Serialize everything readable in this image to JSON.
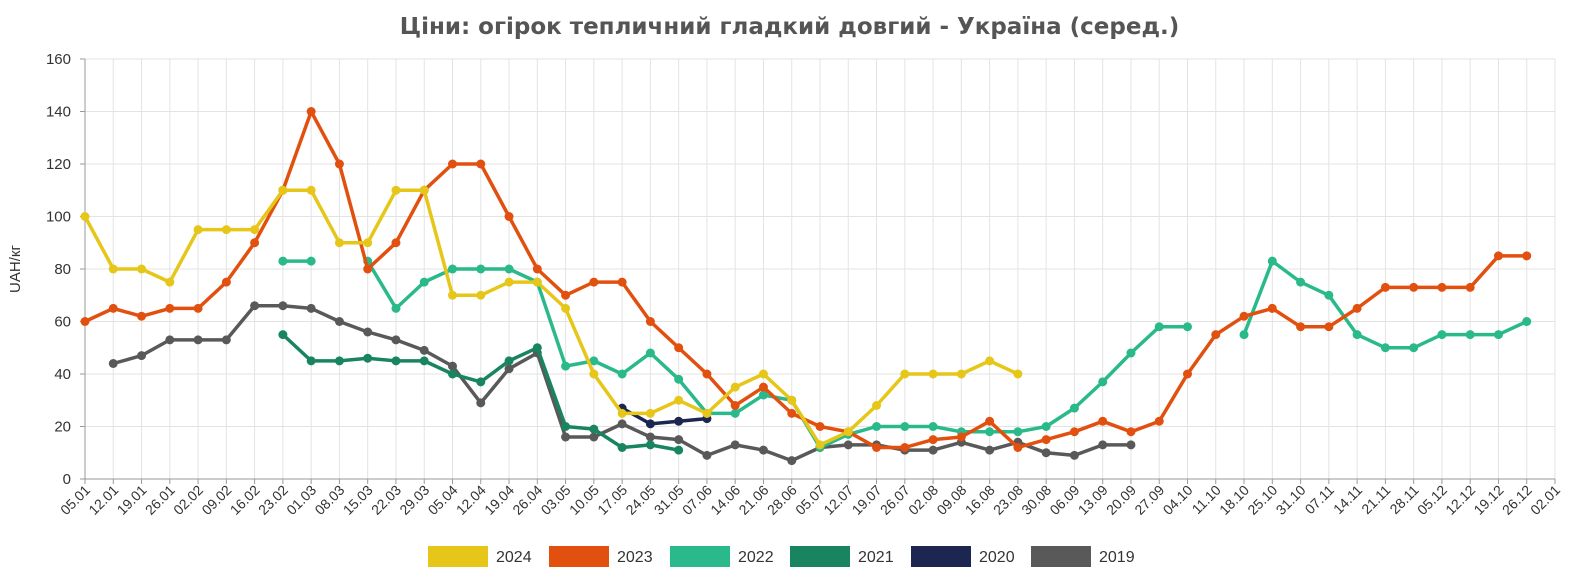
{
  "chart_data": {
    "type": "line",
    "title": "Ціни: огірок тепличний гладкий довгий - Україна (серед.)",
    "ylabel": "UAH/кг",
    "xlabel": "",
    "ylim": [
      0,
      160
    ],
    "yticks": [
      0,
      20,
      40,
      60,
      80,
      100,
      120,
      140,
      160
    ],
    "grid": true,
    "legend_position": "bottom",
    "categories": [
      "05.01",
      "12.01",
      "19.01",
      "26.01",
      "02.02",
      "09.02",
      "16.02",
      "23.02",
      "01.03",
      "08.03",
      "15.03",
      "22.03",
      "29.03",
      "05.04",
      "12.04",
      "19.04",
      "26.04",
      "03.05",
      "10.05",
      "17.05",
      "24.05",
      "31.05",
      "07.06",
      "14.06",
      "21.06",
      "28.06",
      "05.07",
      "12.07",
      "19.07",
      "26.07",
      "02.08",
      "09.08",
      "16.08",
      "23.08",
      "30.08",
      "06.09",
      "13.09",
      "20.09",
      "27.09",
      "04.10",
      "11.10",
      "18.10",
      "25.10",
      "31.10",
      "07.11",
      "14.11",
      "21.11",
      "28.11",
      "05.12",
      "12.12",
      "19.12",
      "26.12",
      "02.01"
    ],
    "series": [
      {
        "name": "2024",
        "color": "#e6c619",
        "values": [
          100,
          80,
          80,
          75,
          95,
          95,
          95,
          110,
          110,
          90,
          90,
          110,
          110,
          70,
          70,
          75,
          75,
          65,
          40,
          25,
          25,
          30,
          25,
          35,
          40,
          30,
          13,
          18,
          28,
          40,
          40,
          40,
          45,
          40,
          null,
          null,
          null,
          null,
          null,
          null,
          null,
          null,
          null,
          null,
          null,
          null,
          null,
          null,
          null,
          null,
          null,
          null,
          null
        ]
      },
      {
        "name": "2023",
        "color": "#e2500f",
        "values": [
          60,
          65,
          62,
          65,
          65,
          75,
          90,
          110,
          140,
          120,
          80,
          90,
          110,
          120,
          120,
          100,
          80,
          70,
          75,
          75,
          60,
          50,
          40,
          28,
          35,
          25,
          20,
          18,
          12,
          12,
          15,
          16,
          22,
          12,
          15,
          18,
          22,
          18,
          22,
          40,
          55,
          62,
          65,
          58,
          58,
          65,
          73,
          73,
          73,
          73,
          85,
          85,
          null
        ]
      },
      {
        "name": "2022",
        "color": "#2ab98a",
        "values": [
          null,
          null,
          null,
          null,
          null,
          null,
          null,
          83,
          83,
          null,
          83,
          65,
          75,
          80,
          80,
          80,
          75,
          43,
          45,
          40,
          48,
          38,
          25,
          25,
          32,
          30,
          12,
          17,
          20,
          20,
          20,
          18,
          18,
          18,
          20,
          27,
          37,
          48,
          58,
          58,
          null,
          55,
          83,
          75,
          70,
          55,
          50,
          50,
          55,
          55,
          55,
          60,
          null
        ]
      },
      {
        "name": "2021",
        "color": "#188560",
        "values": [
          null,
          null,
          null,
          null,
          null,
          null,
          null,
          55,
          45,
          45,
          46,
          45,
          45,
          40,
          37,
          45,
          50,
          20,
          19,
          12,
          13,
          11,
          null,
          null,
          null,
          null,
          null,
          null,
          null,
          null,
          null,
          null,
          null,
          null,
          null,
          null,
          null,
          null,
          null,
          null,
          null,
          null,
          null,
          null,
          null,
          null,
          null,
          null,
          null,
          null,
          null,
          null,
          null
        ]
      },
      {
        "name": "2020",
        "color": "#1c2650",
        "values": [
          null,
          null,
          null,
          null,
          null,
          null,
          null,
          null,
          null,
          null,
          null,
          null,
          null,
          null,
          null,
          null,
          null,
          null,
          null,
          27,
          21,
          22,
          23,
          null,
          null,
          null,
          null,
          null,
          null,
          null,
          null,
          null,
          null,
          null,
          null,
          null,
          null,
          null,
          null,
          null,
          null,
          null,
          null,
          null,
          null,
          null,
          null,
          null,
          null,
          null,
          null,
          null,
          null
        ]
      },
      {
        "name": "2019",
        "color": "#595959",
        "values": [
          null,
          44,
          47,
          53,
          53,
          53,
          66,
          66,
          65,
          60,
          56,
          53,
          49,
          43,
          29,
          42,
          48,
          16,
          16,
          21,
          16,
          15,
          9,
          13,
          11,
          7,
          12,
          13,
          13,
          11,
          11,
          14,
          11,
          14,
          10,
          9,
          13,
          13,
          null,
          null,
          null,
          null,
          null,
          null,
          null,
          null,
          null,
          null,
          null,
          null,
          null,
          null,
          null
        ]
      }
    ]
  }
}
